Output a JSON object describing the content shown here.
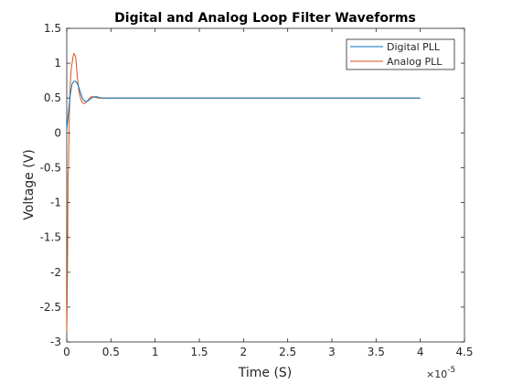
{
  "chart_data": {
    "type": "line",
    "title": "Digital and Analog Loop Filter Waveforms",
    "xlabel": "Time (S)",
    "ylabel": "Voltage (V)",
    "x_exponent_label": "×10",
    "x_exponent_power": "-5",
    "xlim": [
      0,
      4.5
    ],
    "ylim": [
      -3,
      1.5
    ],
    "x_ticks": [
      "0",
      "0.5",
      "1",
      "1.5",
      "2",
      "2.5",
      "3",
      "3.5",
      "4",
      "4.5"
    ],
    "y_ticks": [
      "1.5",
      "1",
      "0.5",
      "0",
      "-0.5",
      "-1",
      "-1.5",
      "-2",
      "-2.5",
      "-3"
    ],
    "legend_position": "top-right",
    "grid": false,
    "series": [
      {
        "name": "Digital PLL",
        "color": "#0072BD",
        "x": [
          0,
          0.02,
          0.04,
          0.06,
          0.08,
          0.1,
          0.12,
          0.14,
          0.16,
          0.18,
          0.2,
          0.22,
          0.24,
          0.26,
          0.28,
          0.3,
          0.32,
          0.34,
          0.36,
          0.38,
          0.4,
          4.0
        ],
        "y": [
          0.05,
          0.3,
          0.55,
          0.7,
          0.74,
          0.74,
          0.71,
          0.64,
          0.56,
          0.49,
          0.46,
          0.45,
          0.46,
          0.48,
          0.5,
          0.51,
          0.52,
          0.52,
          0.51,
          0.505,
          0.5,
          0.5
        ]
      },
      {
        "name": "Analog PLL",
        "color": "#D95319",
        "x": [
          0,
          0.005,
          0.01,
          0.015,
          0.02,
          0.03,
          0.04,
          0.05,
          0.06,
          0.07,
          0.08,
          0.09,
          0.1,
          0.11,
          0.12,
          0.13,
          0.14,
          0.16,
          0.18,
          0.2,
          0.22,
          0.24,
          0.26,
          0.28,
          0.3,
          0.32,
          0.34,
          0.36,
          0.4,
          4.0
        ],
        "y": [
          -2.85,
          -2.4,
          -1.6,
          -0.6,
          -0.5,
          0.3,
          0.7,
          0.9,
          1.0,
          1.08,
          1.14,
          1.12,
          1.1,
          0.95,
          0.8,
          0.68,
          0.58,
          0.48,
          0.43,
          0.42,
          0.44,
          0.47,
          0.5,
          0.52,
          0.52,
          0.51,
          0.505,
          0.5,
          0.5,
          0.5
        ]
      }
    ]
  }
}
